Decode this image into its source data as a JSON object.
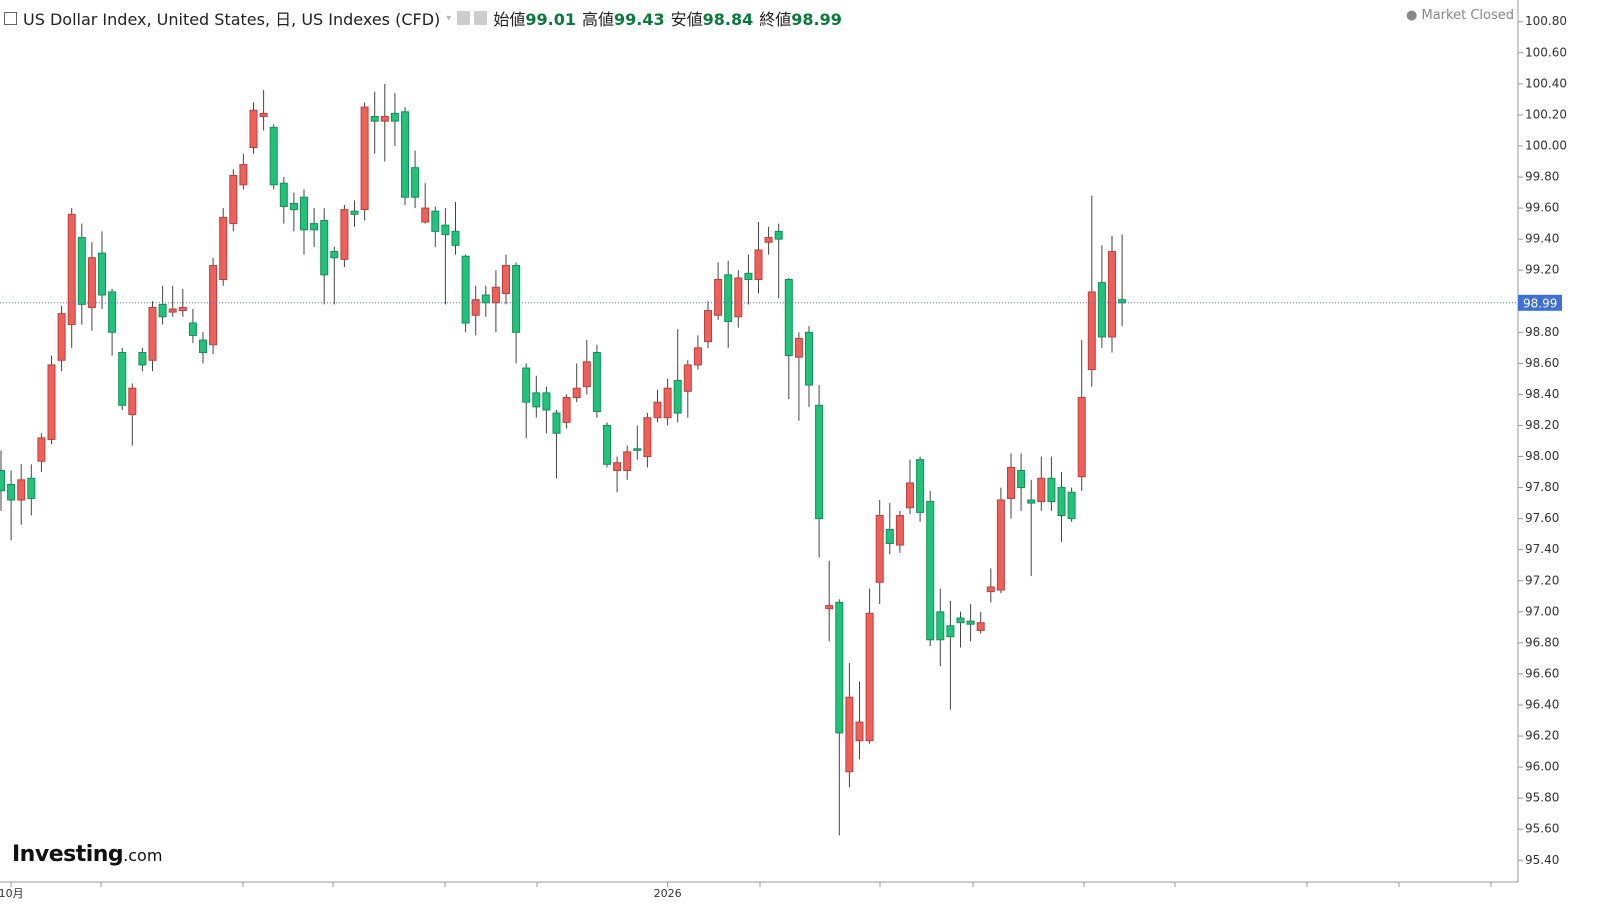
{
  "header": {
    "title": "US Dollar Index, United States, 日, US Indexes (CFD)",
    "labels": [
      "始値",
      "高値",
      "安値",
      "終値"
    ],
    "status": "Market Closed",
    "logo": "Investing",
    "logo_suffix": ".com"
  },
  "chart_data": {
    "type": "candlestick",
    "up_color": "#f0605a",
    "down_color": "#22c27a",
    "ylim": [
      95.26,
      100.94
    ],
    "yticks": [
      {
        "value": 95.4,
        "label": "95.40"
      },
      {
        "value": 95.6,
        "label": "95.60"
      },
      {
        "value": 95.8,
        "label": "95.80"
      },
      {
        "value": 96.0,
        "label": "96.00"
      },
      {
        "value": 96.2,
        "label": "96.20"
      },
      {
        "value": 96.4,
        "label": "96.40"
      },
      {
        "value": 96.6,
        "label": "96.60"
      },
      {
        "value": 96.8,
        "label": "96.80"
      },
      {
        "value": 97.0,
        "label": "97.00"
      },
      {
        "value": 97.2,
        "label": "97.20"
      },
      {
        "value": 97.4,
        "label": "97.40"
      },
      {
        "value": 97.6,
        "label": "97.60"
      },
      {
        "value": 97.8,
        "label": "97.80"
      },
      {
        "value": 98.0,
        "label": "98.00"
      },
      {
        "value": 98.2,
        "label": "98.20"
      },
      {
        "value": 98.4,
        "label": "98.40"
      },
      {
        "value": 98.6,
        "label": "98.60"
      },
      {
        "value": 98.8,
        "label": "98.80"
      },
      {
        "value": 99.2,
        "label": "99.20"
      },
      {
        "value": 99.4,
        "label": "99.40"
      },
      {
        "value": 99.6,
        "label": "99.60"
      },
      {
        "value": 99.8,
        "label": "99.80"
      },
      {
        "value": 100.0,
        "label": "100.00"
      },
      {
        "value": 100.2,
        "label": "100.20"
      },
      {
        "value": 100.4,
        "label": "100.40"
      },
      {
        "value": 100.6,
        "label": "100.60"
      },
      {
        "value": 100.8,
        "label": "100.80"
      }
    ],
    "categories": [
      null,
      "10月",
      null,
      null,
      null,
      null,
      null,
      null,
      null,
      null,
      null,
      null,
      null,
      null,
      null,
      null,
      null,
      null,
      null,
      null,
      null,
      null,
      null,
      null,
      null,
      null,
      null,
      null,
      null,
      null,
      null,
      null,
      null,
      null,
      null,
      null,
      null,
      null,
      null,
      null,
      null,
      null,
      null,
      null,
      null,
      null,
      null,
      null,
      null,
      null,
      null,
      null,
      null,
      null,
      null,
      null,
      null,
      null,
      null,
      null,
      null,
      null,
      null,
      null,
      null,
      null,
      "2026",
      null,
      null,
      null,
      null,
      null,
      null,
      null,
      null,
      null,
      null,
      null,
      null,
      null,
      null,
      null,
      null,
      null,
      null,
      null,
      null,
      null,
      null,
      null,
      null,
      null,
      null,
      null,
      null,
      null,
      null,
      null,
      null,
      null,
      null,
      null,
      null,
      null,
      null,
      null,
      null,
      null,
      null,
      null,
      null,
      null
    ],
    "open": [
      97.91,
      97.82,
      97.72,
      97.86,
      97.97,
      98.11,
      98.62,
      98.85,
      99.41,
      98.96,
      99.31,
      99.06,
      98.67,
      98.27,
      98.67,
      98.62,
      98.98,
      98.93,
      98.94,
      98.86,
      98.75,
      98.72,
      99.14,
      99.5,
      99.75,
      99.99,
      100.19,
      100.12,
      99.76,
      99.63,
      99.67,
      99.5,
      99.52,
      99.32,
      99.27,
      99.58,
      99.59,
      100.19,
      100.16,
      100.21,
      100.22,
      99.86,
      99.51,
      99.58,
      99.49,
      99.45,
      99.29,
      98.91,
      99.04,
      98.99,
      99.05,
      99.23,
      98.57,
      98.41,
      98.41,
      98.28,
      98.22,
      98.38,
      98.45,
      98.67,
      98.2,
      97.91,
      97.91,
      98.05,
      98.0,
      98.25,
      98.25,
      98.49,
      98.42,
      98.59,
      98.74,
      98.91,
      99.17,
      98.9,
      99.18,
      99.14,
      99.38,
      99.45,
      99.14,
      98.64,
      98.8,
      98.33,
      97.02,
      97.06,
      95.97,
      96.17,
      96.17,
      97.19,
      97.53,
      97.43,
      97.67,
      97.98,
      97.71,
      97.0,
      96.91,
      96.96,
      96.94,
      96.88,
      97.13,
      97.14,
      97.73,
      97.91,
      97.72,
      97.71,
      97.86,
      97.8,
      97.77,
      97.87,
      98.56,
      99.12,
      98.77,
      99.01
    ],
    "high": [
      98.04,
      97.91,
      97.95,
      97.95,
      98.15,
      98.65,
      98.97,
      99.6,
      99.5,
      99.38,
      99.45,
      99.08,
      98.7,
      98.47,
      98.7,
      99.0,
      99.1,
      99.1,
      99.08,
      98.95,
      98.8,
      99.28,
      99.6,
      99.85,
      99.95,
      100.28,
      100.36,
      100.14,
      99.8,
      99.7,
      99.72,
      99.6,
      99.6,
      99.35,
      99.62,
      99.65,
      100.28,
      100.35,
      100.4,
      100.34,
      100.25,
      99.97,
      99.76,
      99.61,
      99.6,
      99.64,
      99.3,
      99.1,
      99.1,
      99.2,
      99.3,
      99.25,
      98.6,
      98.52,
      98.45,
      98.3,
      98.4,
      98.6,
      98.75,
      98.72,
      98.22,
      98.0,
      98.07,
      98.2,
      98.28,
      98.43,
      98.5,
      98.82,
      98.62,
      98.78,
      99.0,
      99.25,
      99.26,
      99.2,
      99.3,
      99.51,
      99.48,
      99.5,
      99.15,
      98.8,
      98.84,
      98.46,
      97.33,
      97.08,
      96.67,
      96.55,
      97.15,
      97.72,
      97.7,
      97.65,
      97.98,
      98.0,
      97.78,
      97.15,
      97.07,
      97.0,
      97.05,
      97.0,
      97.28,
      97.8,
      98.02,
      98.02,
      97.85,
      98.0,
      98.0,
      97.9,
      97.8,
      98.75,
      99.68,
      99.36,
      99.42,
      99.43
    ],
    "low": [
      97.65,
      97.46,
      97.56,
      97.62,
      97.9,
      98.08,
      98.55,
      98.7,
      98.85,
      98.81,
      98.95,
      98.65,
      98.3,
      98.07,
      98.55,
      98.55,
      98.85,
      98.9,
      98.9,
      98.73,
      98.6,
      98.66,
      99.1,
      99.45,
      99.72,
      99.95,
      100.1,
      99.72,
      99.5,
      99.45,
      99.3,
      99.35,
      98.98,
      98.98,
      99.22,
      99.48,
      99.52,
      99.95,
      99.9,
      100.0,
      99.62,
      99.6,
      99.5,
      99.35,
      98.98,
      99.3,
      98.8,
      98.78,
      98.9,
      98.8,
      98.98,
      98.6,
      98.12,
      98.25,
      98.15,
      97.86,
      98.18,
      98.35,
      98.4,
      98.25,
      97.93,
      97.77,
      97.85,
      97.98,
      97.93,
      98.22,
      98.2,
      98.22,
      98.25,
      98.56,
      98.7,
      98.88,
      98.7,
      98.83,
      98.98,
      99.05,
      99.3,
      99.02,
      98.37,
      98.23,
      98.32,
      97.35,
      96.81,
      95.56,
      95.87,
      96.05,
      96.15,
      97.05,
      97.37,
      97.38,
      97.63,
      97.58,
      96.78,
      96.65,
      96.37,
      96.77,
      96.81,
      96.86,
      97.06,
      97.12,
      97.6,
      97.65,
      97.23,
      97.65,
      97.65,
      97.45,
      97.58,
      97.78,
      98.45,
      98.7,
      98.67,
      98.84
    ],
    "close": [
      97.78,
      97.72,
      97.85,
      97.73,
      98.12,
      98.59,
      98.92,
      99.56,
      98.98,
      99.28,
      99.04,
      98.8,
      98.33,
      98.44,
      98.59,
      98.96,
      98.9,
      98.95,
      98.96,
      98.78,
      98.67,
      99.23,
      99.54,
      99.81,
      99.88,
      100.23,
      100.21,
      99.75,
      99.61,
      99.59,
      99.46,
      99.46,
      99.17,
      99.28,
      99.59,
      99.56,
      100.25,
      100.16,
      100.19,
      100.16,
      99.67,
      99.67,
      99.6,
      99.45,
      99.43,
      99.36,
      98.86,
      99.01,
      98.99,
      99.09,
      99.23,
      98.8,
      98.35,
      98.32,
      98.3,
      98.15,
      98.38,
      98.44,
      98.61,
      98.29,
      97.95,
      97.96,
      98.03,
      98.04,
      98.25,
      98.35,
      98.44,
      98.28,
      98.59,
      98.7,
      98.94,
      99.14,
      98.87,
      99.15,
      99.14,
      99.33,
      99.41,
      99.4,
      98.65,
      98.76,
      98.46,
      97.6,
      97.04,
      96.22,
      96.45,
      96.29,
      96.99,
      97.62,
      97.44,
      97.62,
      97.83,
      97.64,
      96.82,
      96.82,
      96.84,
      96.93,
      96.92,
      96.93,
      97.16,
      97.72,
      97.93,
      97.8,
      97.7,
      97.86,
      97.71,
      97.62,
      97.6,
      98.38,
      99.06,
      98.77,
      99.32,
      98.99
    ]
  }
}
